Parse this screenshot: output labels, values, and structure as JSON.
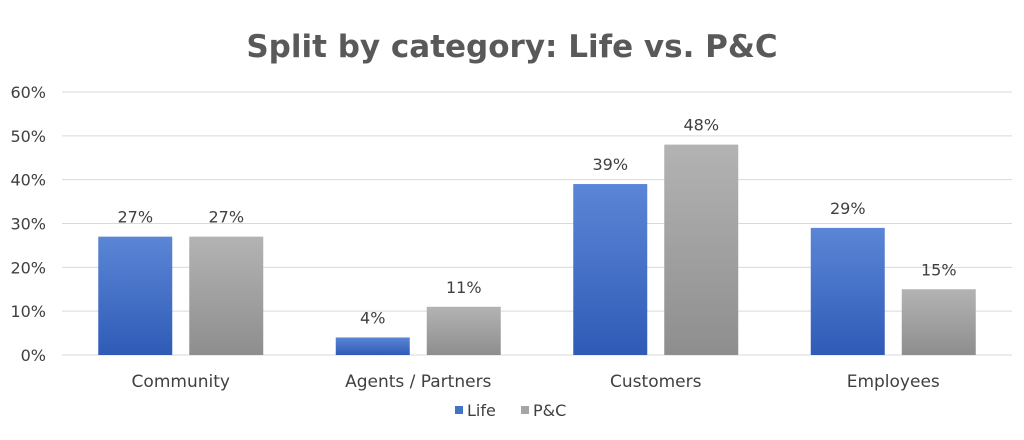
{
  "chart_data": {
    "type": "bar",
    "title": "Split by category: Life vs. P&C",
    "categories": [
      "Community",
      "Agents / Partners",
      "Customers",
      "Employees"
    ],
    "series": [
      {
        "name": "Life",
        "values": [
          27,
          4,
          39,
          29
        ],
        "labels": [
          "27%",
          "4%",
          "39%",
          "29%"
        ]
      },
      {
        "name": "P&C",
        "values": [
          27,
          11,
          48,
          15
        ],
        "labels": [
          "27%",
          "11%",
          "48%",
          "15%"
        ]
      }
    ],
    "ylim": [
      0,
      60
    ],
    "yticks": [
      "0%",
      "10%",
      "20%",
      "30%",
      "40%",
      "50%",
      "60%"
    ],
    "grid": true,
    "legend_position": "bottom",
    "colors": {
      "Life": "#4472C4",
      "P&C": "#A5A5A5"
    }
  }
}
